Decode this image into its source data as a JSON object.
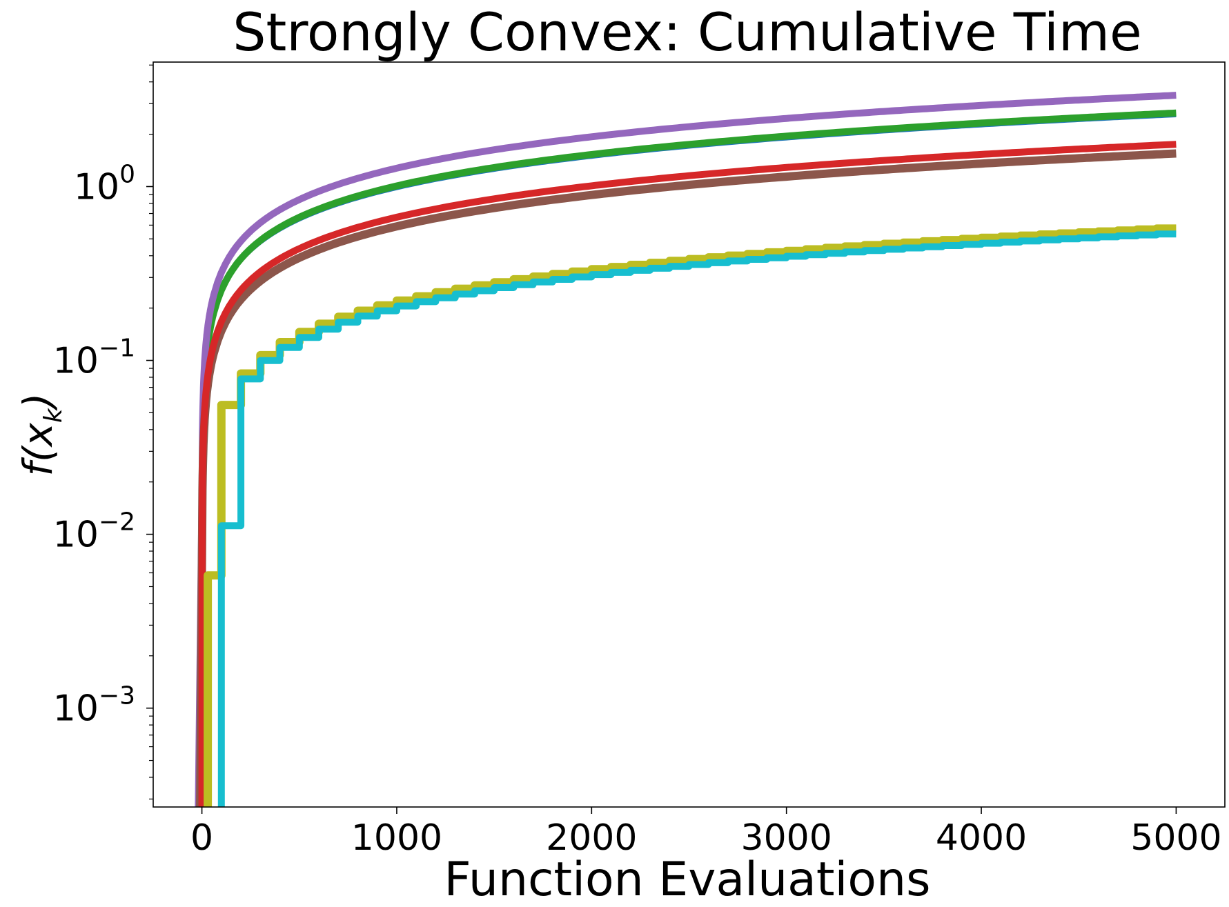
{
  "chart_data": {
    "type": "line",
    "title": "Strongly Convex: Cumulative Time",
    "xlabel": "Function Evaluations",
    "ylabel": "f(x_k)",
    "xlim": [
      -250,
      5250
    ],
    "ylim": [
      0.00027,
      5.2
    ],
    "yscale": "log",
    "grid": false,
    "legend": "none",
    "x_ticks": [
      0,
      1000,
      2000,
      3000,
      4000,
      5000
    ],
    "y_ticks": [
      {
        "value": 0.001,
        "base": "10",
        "exp": "−3"
      },
      {
        "value": 0.01,
        "base": "10",
        "exp": "−2"
      },
      {
        "value": 0.1,
        "base": "10",
        "exp": "−1"
      },
      {
        "value": 1,
        "base": "10",
        "exp": "0"
      }
    ],
    "series": [
      {
        "color": "#1f77b4",
        "width": 4,
        "kind": "smooth",
        "start": 0,
        "end": 5000,
        "final": 2.55,
        "power": 0.6
      },
      {
        "color": "#2ca02c",
        "width": 10,
        "kind": "smooth",
        "start": 0,
        "end": 5000,
        "final": 2.65,
        "power": 0.6
      },
      {
        "color": "#9467bd",
        "width": 10,
        "kind": "smooth",
        "start": -20,
        "end": 5000,
        "final": 3.35,
        "power": 0.6
      },
      {
        "color": "#ff7f0e",
        "width": 4,
        "kind": "smooth",
        "start": 0,
        "end": 5000,
        "final": 1.5,
        "power": 0.6
      },
      {
        "color": "#8c564b",
        "width": 12,
        "kind": "smooth",
        "start": -10,
        "end": 5000,
        "final": 1.55,
        "power": 0.6
      },
      {
        "color": "#d62728",
        "width": 10,
        "kind": "smooth",
        "start": 0,
        "end": 5000,
        "final": 1.75,
        "power": 0.6
      },
      {
        "color": "#bcbd22",
        "width": 12,
        "kind": "step",
        "first_step": 30,
        "step": 100,
        "final": 0.58,
        "first_value": 0.0058
      },
      {
        "color": "#17becf",
        "width": 10,
        "kind": "step",
        "first_step": 100,
        "step": 100,
        "final": 0.54,
        "first_value": 0.0112
      }
    ]
  }
}
